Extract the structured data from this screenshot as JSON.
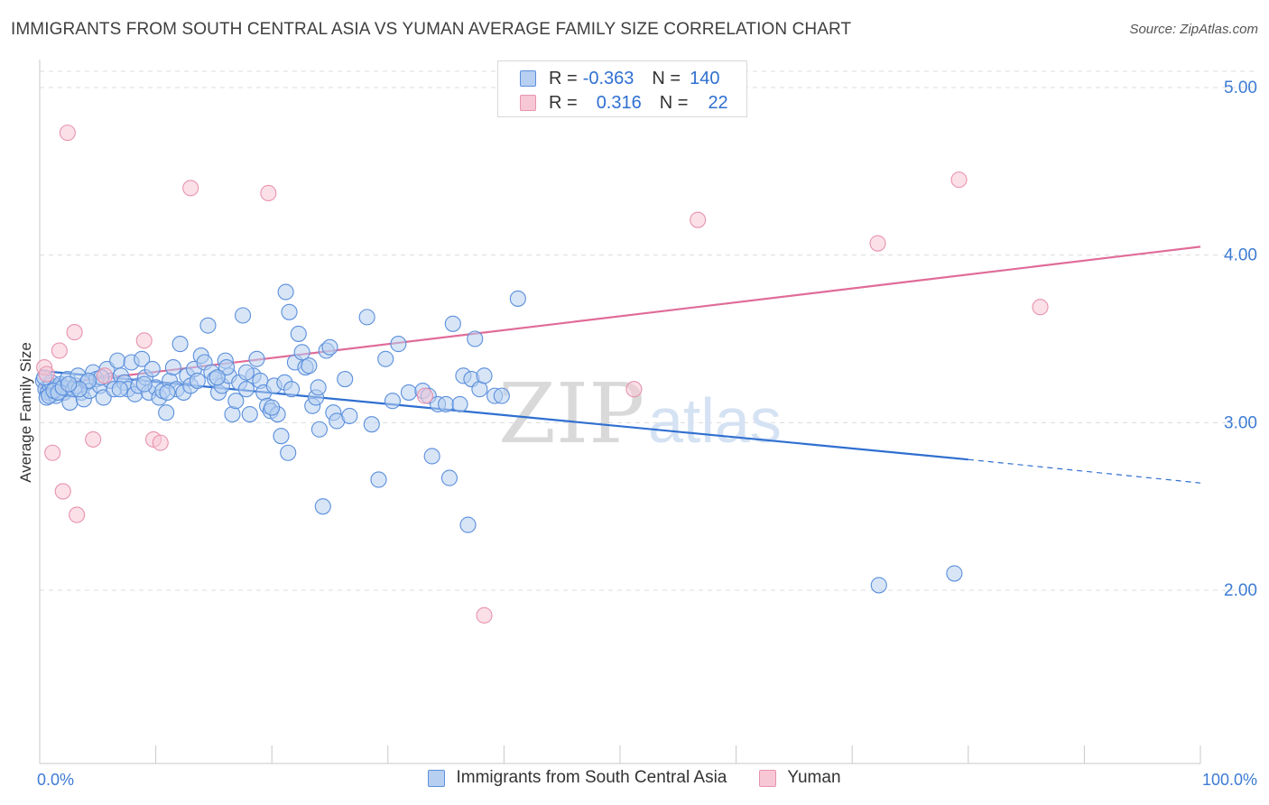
{
  "header": {
    "title": "IMMIGRANTS FROM SOUTH CENTRAL ASIA VS YUMAN AVERAGE FAMILY SIZE CORRELATION CHART",
    "source": "Source: ZipAtlas.com"
  },
  "watermark": {
    "zip": "ZIP",
    "atlas": "atlas"
  },
  "legend": {
    "rows": [
      {
        "r_label": "R =",
        "r_value": "-0.363",
        "n_label": "N =",
        "n_value": "140"
      },
      {
        "r_label": "R =",
        "r_value": "0.316",
        "n_label": "N =",
        "n_value": "22"
      }
    ]
  },
  "bottom_legend": {
    "series1": "Immigrants from South Central Asia",
    "series2": "Yuman"
  },
  "colors": {
    "blue_fill": "#b7cff1",
    "blue_stroke": "#5b8fdc",
    "blue_line": "#2f6fd0",
    "pink_fill": "#f8c7d6",
    "pink_stroke": "#e793ae",
    "pink_line": "#e06c98",
    "axis_text": "#3d7bd4",
    "grid": "#dcdcdc"
  },
  "chart_data": {
    "type": "scatter",
    "title": "IMMIGRANTS FROM SOUTH CENTRAL ASIA VS YUMAN AVERAGE FAMILY SIZE CORRELATION CHART",
    "xlabel": "",
    "ylabel": "Average Family Size",
    "xlim": [
      0,
      100
    ],
    "ylim": [
      1.0,
      5.1
    ],
    "x_tick_labels": [
      "0.0%",
      "100.0%"
    ],
    "y_ticks": [
      2.0,
      3.0,
      4.0,
      5.0
    ],
    "y_tick_labels": [
      "2.00",
      "3.00",
      "4.00",
      "5.00"
    ],
    "grid": true,
    "series": [
      {
        "name": "Immigrants from South Central Asia",
        "color": "#5b8fdc",
        "points": [
          [
            0.3,
            3.25
          ],
          [
            0.5,
            3.2
          ],
          [
            0.7,
            3.18
          ],
          [
            0.9,
            3.22
          ],
          [
            1.1,
            3.17
          ],
          [
            1.3,
            3.2
          ],
          [
            1.5,
            3.21
          ],
          [
            1.7,
            3.19
          ],
          [
            1.9,
            3.22
          ],
          [
            2.1,
            3.18
          ],
          [
            0.6,
            3.15
          ],
          [
            1.0,
            3.24
          ],
          [
            1.4,
            3.16
          ],
          [
            1.8,
            3.23
          ],
          [
            2.3,
            3.2
          ],
          [
            0.4,
            3.27
          ],
          [
            0.8,
            3.16
          ],
          [
            1.2,
            3.19
          ],
          [
            1.6,
            3.18
          ],
          [
            2.0,
            3.21
          ],
          [
            2.4,
            3.26
          ],
          [
            2.6,
            3.12
          ],
          [
            2.9,
            3.2
          ],
          [
            3.1,
            3.22
          ],
          [
            3.3,
            3.28
          ],
          [
            3.6,
            3.18
          ],
          [
            3.8,
            3.14
          ],
          [
            4.1,
            3.24
          ],
          [
            4.3,
            3.19
          ],
          [
            4.6,
            3.3
          ],
          [
            4.9,
            3.26
          ],
          [
            5.2,
            3.22
          ],
          [
            5.5,
            3.15
          ],
          [
            5.8,
            3.32
          ],
          [
            6.1,
            3.25
          ],
          [
            6.4,
            3.2
          ],
          [
            6.7,
            3.37
          ],
          [
            7.0,
            3.28
          ],
          [
            7.3,
            3.24
          ],
          [
            7.6,
            3.2
          ],
          [
            7.9,
            3.36
          ],
          [
            8.2,
            3.17
          ],
          [
            8.5,
            3.22
          ],
          [
            8.8,
            3.38
          ],
          [
            9.1,
            3.27
          ],
          [
            9.4,
            3.18
          ],
          [
            9.7,
            3.32
          ],
          [
            10.0,
            3.21
          ],
          [
            10.3,
            3.15
          ],
          [
            10.6,
            3.19
          ],
          [
            10.9,
            3.06
          ],
          [
            11.2,
            3.25
          ],
          [
            11.5,
            3.33
          ],
          [
            11.8,
            3.2
          ],
          [
            12.1,
            3.47
          ],
          [
            12.4,
            3.18
          ],
          [
            12.7,
            3.28
          ],
          [
            13.0,
            3.22
          ],
          [
            13.3,
            3.32
          ],
          [
            13.6,
            3.25
          ],
          [
            13.9,
            3.4
          ],
          [
            14.2,
            3.36
          ],
          [
            14.5,
            3.58
          ],
          [
            14.8,
            3.3
          ],
          [
            15.1,
            3.26
          ],
          [
            15.4,
            3.18
          ],
          [
            15.7,
            3.22
          ],
          [
            16.0,
            3.37
          ],
          [
            16.3,
            3.28
          ],
          [
            16.6,
            3.05
          ],
          [
            16.9,
            3.13
          ],
          [
            17.2,
            3.24
          ],
          [
            17.5,
            3.64
          ],
          [
            17.8,
            3.2
          ],
          [
            18.1,
            3.05
          ],
          [
            18.4,
            3.28
          ],
          [
            18.7,
            3.38
          ],
          [
            19.0,
            3.25
          ],
          [
            19.3,
            3.18
          ],
          [
            19.6,
            3.1
          ],
          [
            19.9,
            3.07
          ],
          [
            20.2,
            3.22
          ],
          [
            20.5,
            3.05
          ],
          [
            20.8,
            2.92
          ],
          [
            21.1,
            3.24
          ],
          [
            21.4,
            2.82
          ],
          [
            21.7,
            3.2
          ],
          [
            22.0,
            3.36
          ],
          [
            22.3,
            3.53
          ],
          [
            22.6,
            3.42
          ],
          [
            22.9,
            3.33
          ],
          [
            23.2,
            3.34
          ],
          [
            23.5,
            3.1
          ],
          [
            23.8,
            3.15
          ],
          [
            24.1,
            2.96
          ],
          [
            24.4,
            2.5
          ],
          [
            24.7,
            3.43
          ],
          [
            25.0,
            3.45
          ],
          [
            25.3,
            3.06
          ],
          [
            25.6,
            3.01
          ],
          [
            26.7,
            3.04
          ],
          [
            28.2,
            3.63
          ],
          [
            28.6,
            2.99
          ],
          [
            29.2,
            2.66
          ],
          [
            29.8,
            3.38
          ],
          [
            30.4,
            3.13
          ],
          [
            30.9,
            3.47
          ],
          [
            31.8,
            3.18
          ],
          [
            33.0,
            3.19
          ],
          [
            33.5,
            3.16
          ],
          [
            33.8,
            2.8
          ],
          [
            34.3,
            3.11
          ],
          [
            35.0,
            3.11
          ],
          [
            35.3,
            2.67
          ],
          [
            35.6,
            3.59
          ],
          [
            36.2,
            3.11
          ],
          [
            36.5,
            3.28
          ],
          [
            36.9,
            2.39
          ],
          [
            37.2,
            3.26
          ],
          [
            37.5,
            3.5
          ],
          [
            37.9,
            3.2
          ],
          [
            38.3,
            3.28
          ],
          [
            39.2,
            3.16
          ],
          [
            39.8,
            3.16
          ],
          [
            41.2,
            3.74
          ],
          [
            21.5,
            3.66
          ],
          [
            21.2,
            3.78
          ],
          [
            17.8,
            3.3
          ],
          [
            16.1,
            3.33
          ],
          [
            15.3,
            3.27
          ],
          [
            11.0,
            3.18
          ],
          [
            9.0,
            3.23
          ],
          [
            6.9,
            3.2
          ],
          [
            5.3,
            3.27
          ],
          [
            4.2,
            3.25
          ],
          [
            3.4,
            3.2
          ],
          [
            2.5,
            3.23
          ],
          [
            26.3,
            3.26
          ],
          [
            24.0,
            3.21
          ],
          [
            20.0,
            3.09
          ],
          [
            72.3,
            2.03
          ],
          [
            78.8,
            2.1
          ]
        ]
      },
      {
        "name": "Yuman",
        "color": "#e793ae",
        "points": [
          [
            0.4,
            3.33
          ],
          [
            1.1,
            2.82
          ],
          [
            1.7,
            3.43
          ],
          [
            2.0,
            2.59
          ],
          [
            2.4,
            4.73
          ],
          [
            3.0,
            3.54
          ],
          [
            3.2,
            2.45
          ],
          [
            4.6,
            2.9
          ],
          [
            5.6,
            3.28
          ],
          [
            9.0,
            3.49
          ],
          [
            9.8,
            2.9
          ],
          [
            10.4,
            2.88
          ],
          [
            13.0,
            4.4
          ],
          [
            19.7,
            4.37
          ],
          [
            33.2,
            3.16
          ],
          [
            38.3,
            1.85
          ],
          [
            51.2,
            3.2
          ],
          [
            56.7,
            4.21
          ],
          [
            72.2,
            4.07
          ],
          [
            79.2,
            4.45
          ],
          [
            86.2,
            3.69
          ],
          [
            0.6,
            3.29
          ]
        ]
      }
    ],
    "trendlines": [
      {
        "series": "Immigrants from South Central Asia",
        "x": [
          0,
          80
        ],
        "y": [
          3.31,
          2.78
        ],
        "dashed_extension": {
          "x": [
            80,
            100
          ],
          "y": [
            2.78,
            2.64
          ]
        }
      },
      {
        "series": "Yuman",
        "x": [
          0,
          100
        ],
        "y": [
          3.22,
          4.05
        ]
      }
    ]
  }
}
